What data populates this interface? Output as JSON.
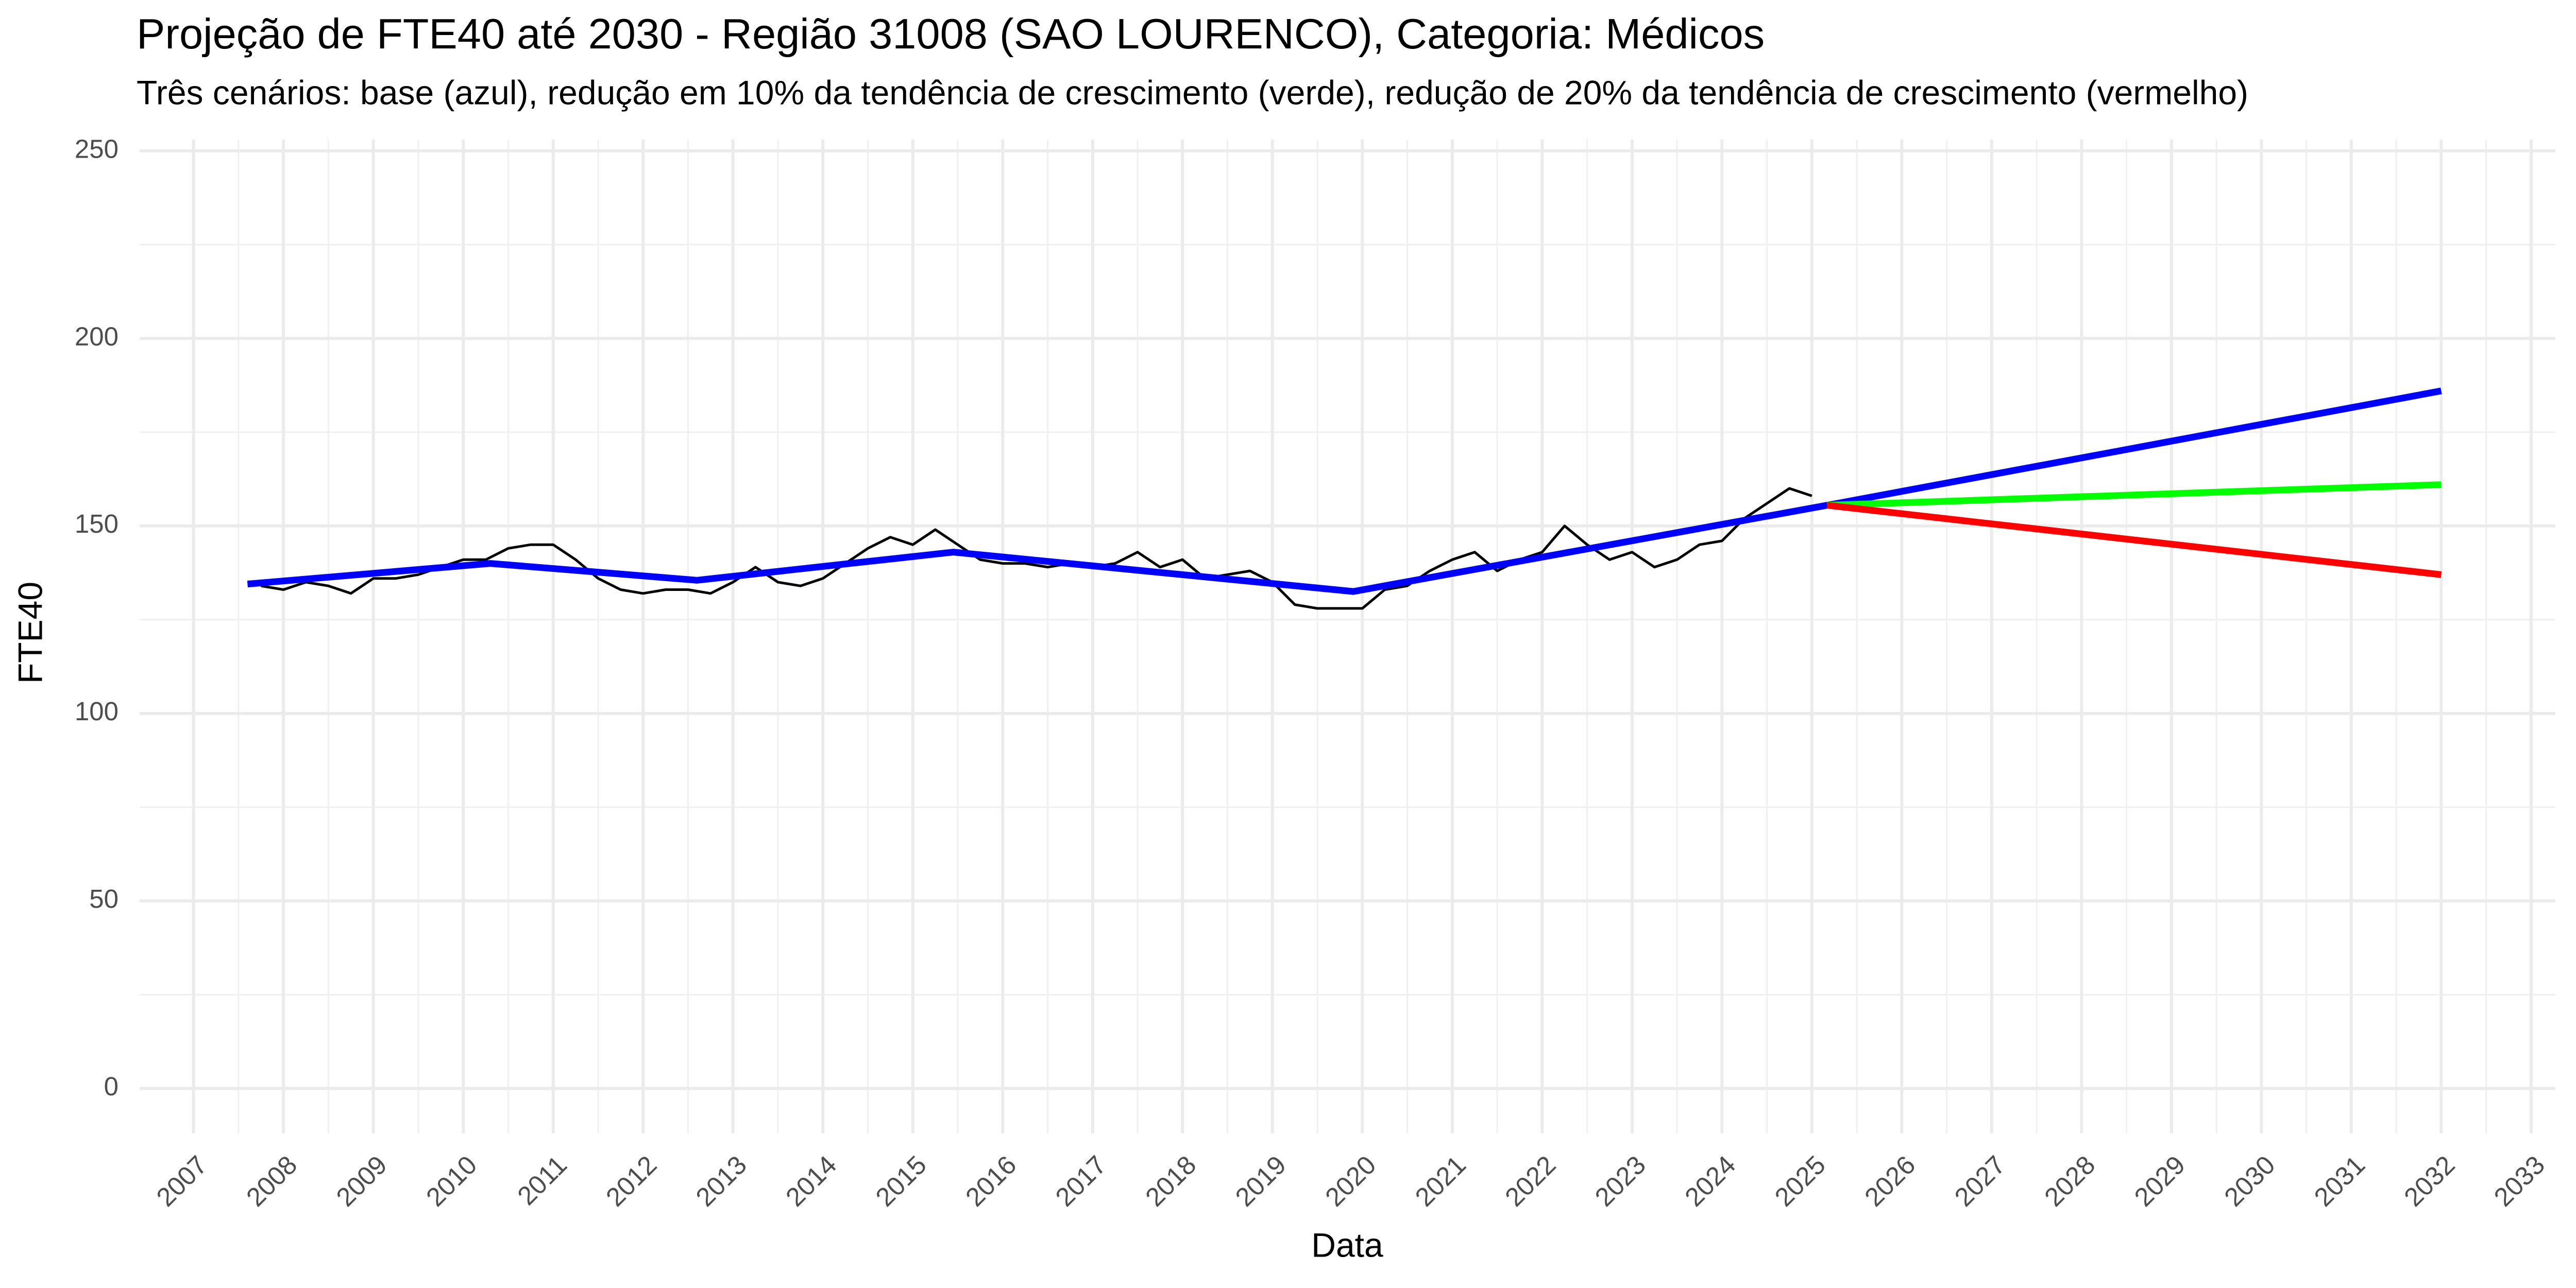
{
  "chart_data": {
    "type": "line",
    "title": "Projeção de FTE40 até 2030 - Região 31008 (SAO LOURENCO), Categoria: Médicos",
    "subtitle": "Três cenários: base (azul), redução em 10% da tendência de crescimento (verde), redução de 20% da tendência de crescimento (vermelho)",
    "x_label": "Data",
    "y_label": "FTE40",
    "xlim": [
      2006.4,
      2033.27
    ],
    "ylim": [
      -12,
      253
    ],
    "xticks": [
      2007,
      2008,
      2009,
      2010,
      2011,
      2012,
      2013,
      2014,
      2015,
      2016,
      2017,
      2018,
      2019,
      2020,
      2021,
      2022,
      2023,
      2024,
      2025,
      2026,
      2027,
      2028,
      2029,
      2030,
      2031,
      2032,
      2033
    ],
    "yticks": [
      0,
      50,
      100,
      150,
      200,
      250
    ],
    "grid": true,
    "series": [
      {
        "color": "#000000",
        "x": [
          2007.75,
          2008.0,
          2008.25,
          2008.5,
          2008.75,
          2009.0,
          2009.25,
          2009.5,
          2009.75,
          2010.0,
          2010.25,
          2010.5,
          2010.75,
          2011.0,
          2011.25,
          2011.5,
          2011.75,
          2012.0,
          2012.25,
          2012.5,
          2012.75,
          2013.0,
          2013.25,
          2013.5,
          2013.75,
          2014.0,
          2014.25,
          2014.5,
          2014.75,
          2015.0,
          2015.25,
          2015.5,
          2015.75,
          2016.0,
          2016.25,
          2016.5,
          2016.75,
          2017.0,
          2017.25,
          2017.5,
          2017.75,
          2018.0,
          2018.25,
          2018.5,
          2018.75,
          2019.0,
          2019.25,
          2019.5,
          2019.75,
          2020.0,
          2020.25,
          2020.5,
          2020.75,
          2021.0,
          2021.25,
          2021.5,
          2021.75,
          2022.0,
          2022.25,
          2022.5,
          2022.75,
          2023.0,
          2023.25,
          2023.5,
          2023.75,
          2024.0,
          2024.25,
          2024.5,
          2024.75,
          2025.0
        ],
        "values": [
          134,
          133,
          135,
          134,
          132,
          136,
          136,
          137,
          139,
          141,
          141,
          144,
          145,
          145,
          141,
          136,
          133,
          132,
          133,
          133,
          132,
          135,
          139,
          135,
          134,
          136,
          140,
          144,
          147,
          145,
          149,
          145,
          141,
          140,
          140,
          139,
          140,
          139,
          140,
          143,
          139,
          141,
          136,
          137,
          138,
          135,
          129,
          128,
          128,
          128,
          133,
          134,
          138,
          141,
          143,
          138,
          141,
          143,
          150,
          145,
          141,
          143,
          139,
          141,
          145,
          146,
          152,
          156,
          160,
          158
        ]
      },
      {
        "color": "#0000ff",
        "x": [
          2007.6,
          2010.3,
          2012.6,
          2015.45,
          2019.9,
          2025.17,
          2032.0
        ],
        "values": [
          134.5,
          140,
          135.5,
          143,
          132.5,
          155.5,
          186
        ]
      },
      {
        "color": "#00ff00",
        "x": [
          2025.17,
          2032.0
        ],
        "values": [
          155.5,
          161
        ]
      },
      {
        "color": "#ff0000",
        "x": [
          2025.17,
          2032.0
        ],
        "values": [
          155.5,
          137
        ]
      }
    ]
  }
}
